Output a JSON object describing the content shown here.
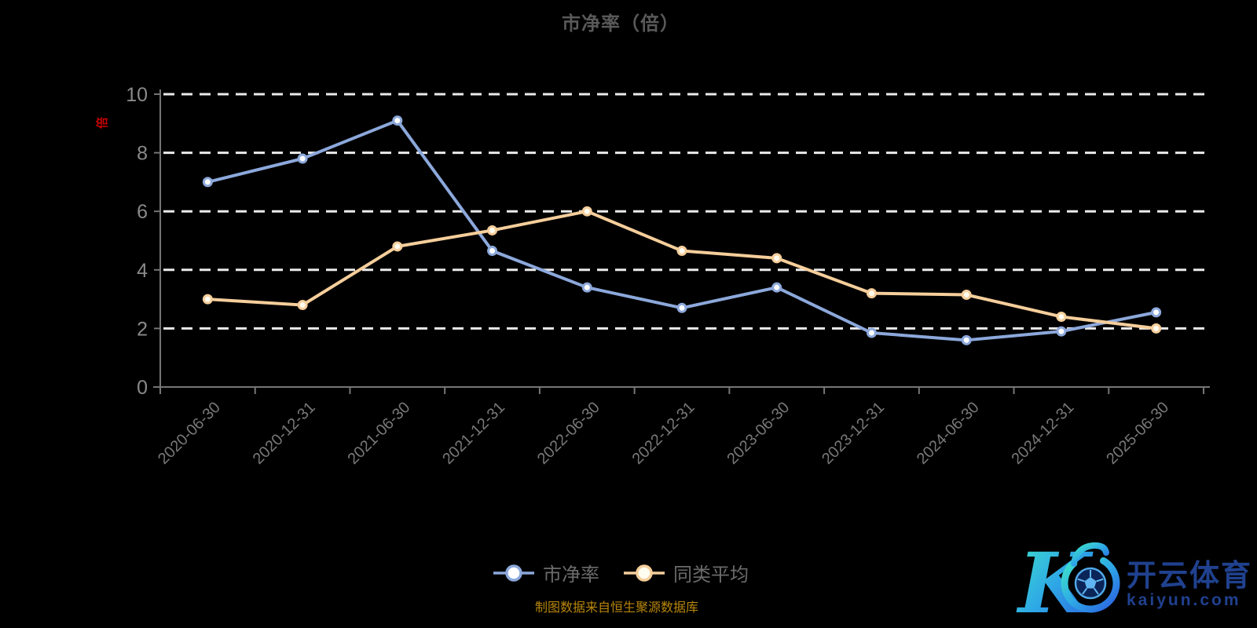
{
  "title": "市净率（倍）",
  "y_axis_unit": "倍",
  "footer": {
    "caption": "制图数据来自恒生聚源数据库"
  },
  "watermark": {
    "monogram": "K",
    "brand": "开云体育",
    "domain": "kaiyun.com"
  },
  "colors": {
    "background": "#000000",
    "series_pb": "#8CA8DB",
    "series_avg": "#F5CE9B",
    "gridline": "#EAEAEA",
    "axis": "#757575",
    "caption_gold": "#B8860B",
    "unit_red": "#C40000",
    "watermark_gradient": [
      "#3FE3C9",
      "#2EA8E6",
      "#2B5FE0"
    ],
    "watermark_text": "#20418F"
  },
  "chart_data": {
    "type": "line",
    "categories": [
      "2020-06-30",
      "2020-12-31",
      "2021-06-30",
      "2021-12-31",
      "2022-06-30",
      "2022-12-31",
      "2023-06-30",
      "2023-12-31",
      "2024-06-30",
      "2024-12-31",
      "2025-06-30"
    ],
    "series": [
      {
        "name": "市净率",
        "color": "#8CA8DB",
        "marker_fill": "#FFFFFF",
        "values": [
          7.0,
          7.8,
          9.1,
          4.65,
          3.4,
          2.7,
          3.4,
          1.85,
          1.6,
          1.9,
          2.55
        ]
      },
      {
        "name": "同类平均",
        "color": "#F5CE9B",
        "marker_fill": "#FFFCF0",
        "values": [
          3.0,
          2.8,
          4.8,
          5.35,
          6.0,
          4.65,
          4.4,
          3.2,
          3.15,
          2.4,
          2.0
        ]
      }
    ],
    "title": "市净率（倍）",
    "xlabel": "",
    "ylabel": "倍",
    "ylim": [
      0,
      10
    ],
    "y_ticks": [
      0,
      2,
      4,
      6,
      8,
      10
    ],
    "grid": "horizontal dashed",
    "legend_position": "bottom-center"
  }
}
